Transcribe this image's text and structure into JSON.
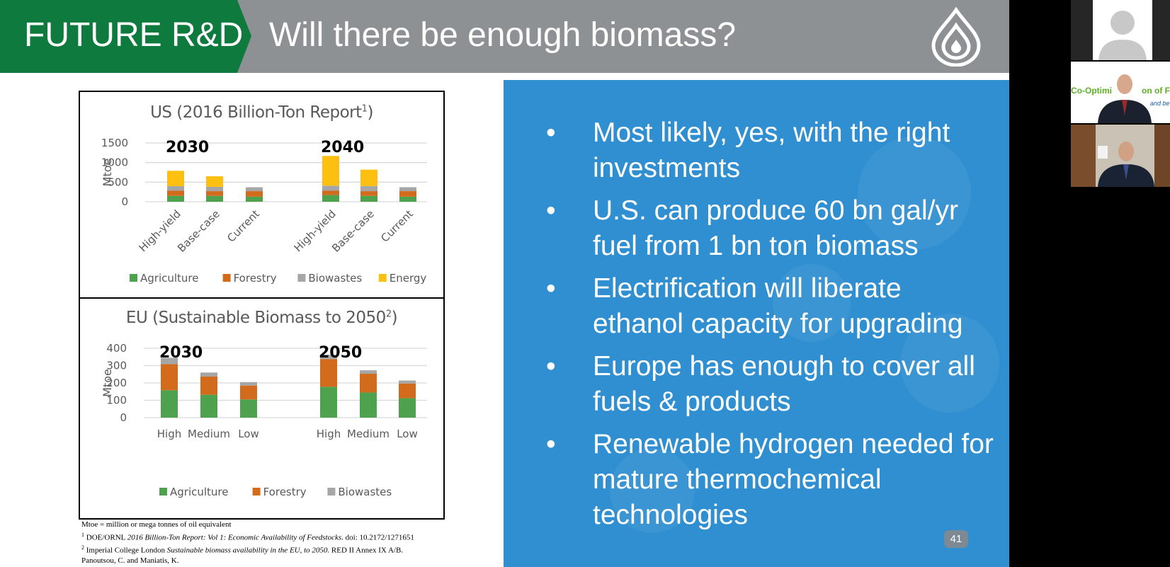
{
  "slide": {
    "tag": "FUTURE R&D",
    "title": "Will there be enough biomass?",
    "page_number": "41",
    "colors": {
      "green": "#0f7a3e",
      "header_gray": "#8e9193",
      "panel_blue": "#2f8fd0"
    }
  },
  "us_chart": {
    "title": "US (2016 Billion-Ton Report",
    "title_sup": "1",
    "title_close": ")",
    "ylabel": "Mtoe",
    "yticks": [
      "0",
      "500",
      "1000",
      "1500"
    ],
    "period_labels": [
      "2030",
      "2040"
    ],
    "legend": [
      "Agriculture",
      "Forestry",
      "Biowastes",
      "Energy"
    ]
  },
  "eu_chart": {
    "title": "EU (Sustainable Biomass to 2050",
    "title_sup": "2",
    "title_close": ")",
    "ylabel": "Mtoe",
    "yticks": [
      "0",
      "100",
      "200",
      "300",
      "400"
    ],
    "period_labels": [
      "2030",
      "2050"
    ],
    "legend": [
      "Agriculture",
      "Forestry",
      "Biowastes"
    ]
  },
  "chart_data": [
    {
      "type": "bar",
      "stacked": true,
      "title": "US (2016 Billion-Ton Report1)",
      "ylabel": "Mtoe",
      "ylim": [
        0,
        1500
      ],
      "groups": [
        "2030",
        "2040"
      ],
      "categories": [
        "High-yield",
        "Base-case",
        "Current",
        "High-yield",
        "Base-case",
        "Current"
      ],
      "group_of_category": [
        "2030",
        "2030",
        "2030",
        "2040",
        "2040",
        "2040"
      ],
      "series": [
        {
          "name": "Agriculture",
          "color": "#4ea24e",
          "values": [
            150,
            150,
            130,
            170,
            150,
            130
          ]
        },
        {
          "name": "Forestry",
          "color": "#d36b1c",
          "values": [
            130,
            120,
            140,
            110,
            120,
            140
          ]
        },
        {
          "name": "Biowastes",
          "color": "#a6a6a6",
          "values": [
            120,
            110,
            100,
            130,
            130,
            100
          ]
        },
        {
          "name": "Energy",
          "color": "#fdc010",
          "values": [
            390,
            270,
            0,
            760,
            420,
            0
          ]
        }
      ],
      "grid": true,
      "legend_position": "bottom"
    },
    {
      "type": "bar",
      "stacked": true,
      "title": "EU (Sustainable Biomass to 20502)",
      "ylabel": "Mtoe",
      "ylim": [
        0,
        400
      ],
      "groups": [
        "2030",
        "2050"
      ],
      "categories": [
        "High",
        "Medium",
        "Low",
        "High",
        "Medium",
        "Low"
      ],
      "group_of_category": [
        "2030",
        "2030",
        "2030",
        "2050",
        "2050",
        "2050"
      ],
      "series": [
        {
          "name": "Agriculture",
          "color": "#4ea24e",
          "values": [
            158,
            132,
            105,
            178,
            145,
            112
          ]
        },
        {
          "name": "Forestry",
          "color": "#d36b1c",
          "values": [
            150,
            105,
            80,
            160,
            108,
            85
          ]
        },
        {
          "name": "Biowastes",
          "color": "#a6a6a6",
          "values": [
            37,
            23,
            20,
            25,
            20,
            17
          ]
        }
      ],
      "grid": true,
      "legend_position": "bottom"
    }
  ],
  "footnotes": {
    "line1": "Mtoe = million or mega tonnes of oil equivalent",
    "n1_sup": "1",
    "n1_a": " DOE/ORNL ",
    "n1_b": "2016 Billion-Ton Report: Vol 1: Economic Availability of Feedstocks",
    "n1_c": ". doi: 10.2172/1271651",
    "n2_sup": "2",
    "n2_a": " Imperial College London ",
    "n2_b": "Sustainable biomass availability in the EU, to 2050.",
    "n2_c": " RED II Annex IX A/B.",
    "line4": "Panoutsou, C. and Maniatis, K."
  },
  "bullets": [
    "Most likely, yes, with the right investments",
    "U.S. can produce 60 bn gal/yr fuel from 1 bn ton biomass",
    "Electrification will liberate ethanol capacity for upgrading",
    "Europe has enough to cover all fuels & products",
    "Renewable hydrogen needed for mature thermochemical technologies"
  ],
  "bullet_char": "•",
  "video_tiles": {
    "tile2_banner": "Co-Optimi",
    "tile2_banner_end": "on of Fu",
    "tile2_sub": "and be"
  }
}
